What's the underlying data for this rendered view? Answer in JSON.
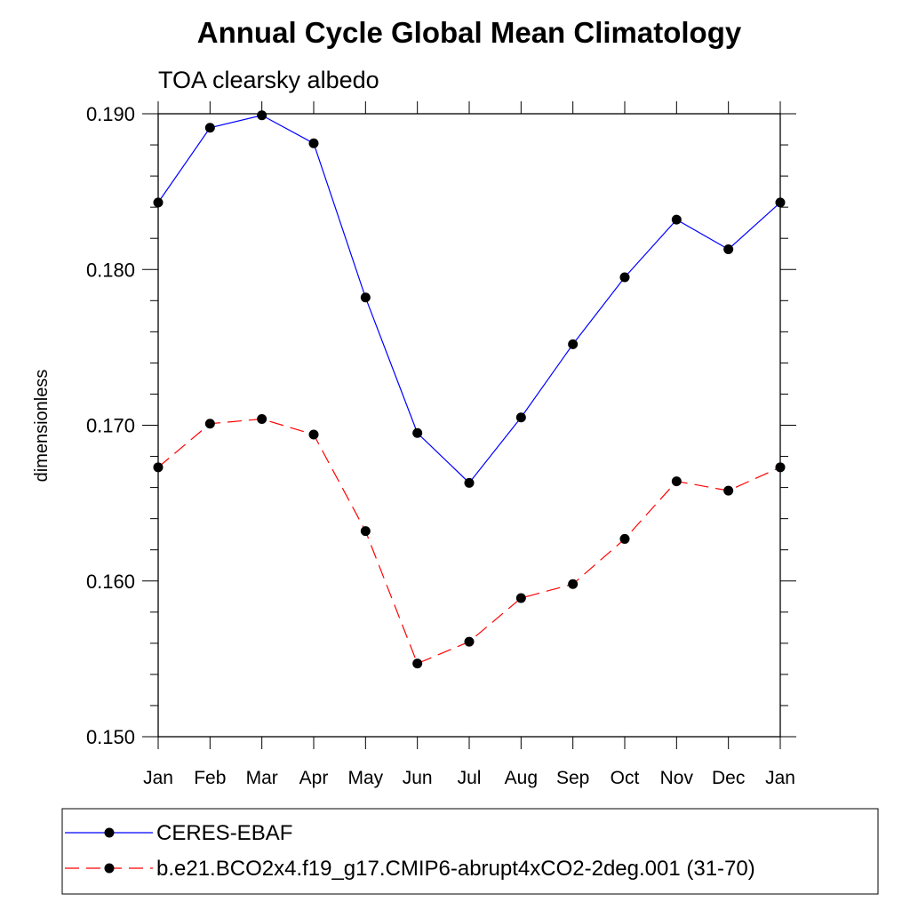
{
  "chart_data": {
    "type": "line",
    "title": "Annual Cycle Global Mean Climatology",
    "subtitle": "TOA clearsky albedo",
    "xlabel": "",
    "ylabel": "dimensionless",
    "categories": [
      "Jan",
      "Feb",
      "Mar",
      "Apr",
      "May",
      "Jun",
      "Jul",
      "Aug",
      "Sep",
      "Oct",
      "Nov",
      "Dec",
      "Jan"
    ],
    "yticks": [
      "0.150",
      "0.160",
      "0.170",
      "0.180",
      "0.190"
    ],
    "ylim": [
      0.15,
      0.19
    ],
    "grid": false,
    "legend_position": "bottom",
    "series": [
      {
        "name": "CERES-EBAF",
        "color": "#0000ff",
        "dash": "solid",
        "marker": "circle",
        "values": [
          0.1843,
          0.1891,
          0.1899,
          0.1881,
          0.1782,
          0.1695,
          0.1663,
          0.1705,
          0.1752,
          0.1795,
          0.1832,
          0.1813,
          0.1843
        ]
      },
      {
        "name": "b.e21.BCO2x4.f19_g17.CMIP6-abrupt4xCO2-2deg.001 (31-70)",
        "color": "#ff0000",
        "dash": "dashed",
        "marker": "circle",
        "values": [
          0.1673,
          0.1701,
          0.1704,
          0.1694,
          0.1632,
          0.1547,
          0.1561,
          0.1589,
          0.1598,
          0.1627,
          0.1664,
          0.1658,
          0.1673
        ]
      }
    ]
  }
}
